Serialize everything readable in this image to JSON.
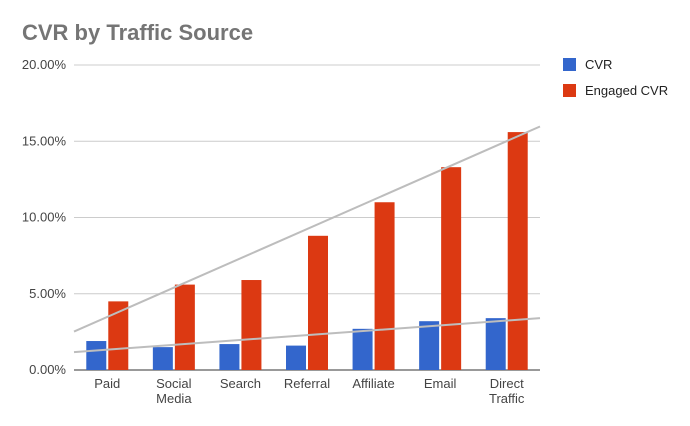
{
  "chart_data": {
    "type": "bar",
    "title": "CVR by Traffic Source",
    "xlabel": "",
    "ylabel": "",
    "categories": [
      [
        "Paid"
      ],
      [
        "Social",
        "Media"
      ],
      [
        "Search"
      ],
      [
        "Referral"
      ],
      [
        "Affiliate"
      ],
      [
        "Email"
      ],
      [
        "Direct",
        "Traffic"
      ]
    ],
    "series": [
      {
        "name": "CVR",
        "color": "#3366cc",
        "values": [
          1.9,
          1.5,
          1.7,
          1.6,
          2.7,
          3.2,
          3.4
        ]
      },
      {
        "name": "Engaged CVR",
        "color": "#dc3912",
        "values": [
          4.5,
          5.6,
          5.9,
          8.8,
          11.0,
          13.3,
          15.6
        ]
      }
    ],
    "ylim": [
      0,
      20
    ],
    "yticks": [
      {
        "value": 0,
        "label": "0.00%"
      },
      {
        "value": 5,
        "label": "5.00%"
      },
      {
        "value": 10,
        "label": "10.00%"
      },
      {
        "value": 15,
        "label": "15.00%"
      },
      {
        "value": 20,
        "label": "20.00%"
      }
    ],
    "trendlines": [
      {
        "series": "CVR",
        "type": "linear"
      },
      {
        "series": "Engaged CVR",
        "type": "linear"
      }
    ],
    "trendline_color": "#bdbdbd",
    "grid": true,
    "legend_position": "right"
  }
}
